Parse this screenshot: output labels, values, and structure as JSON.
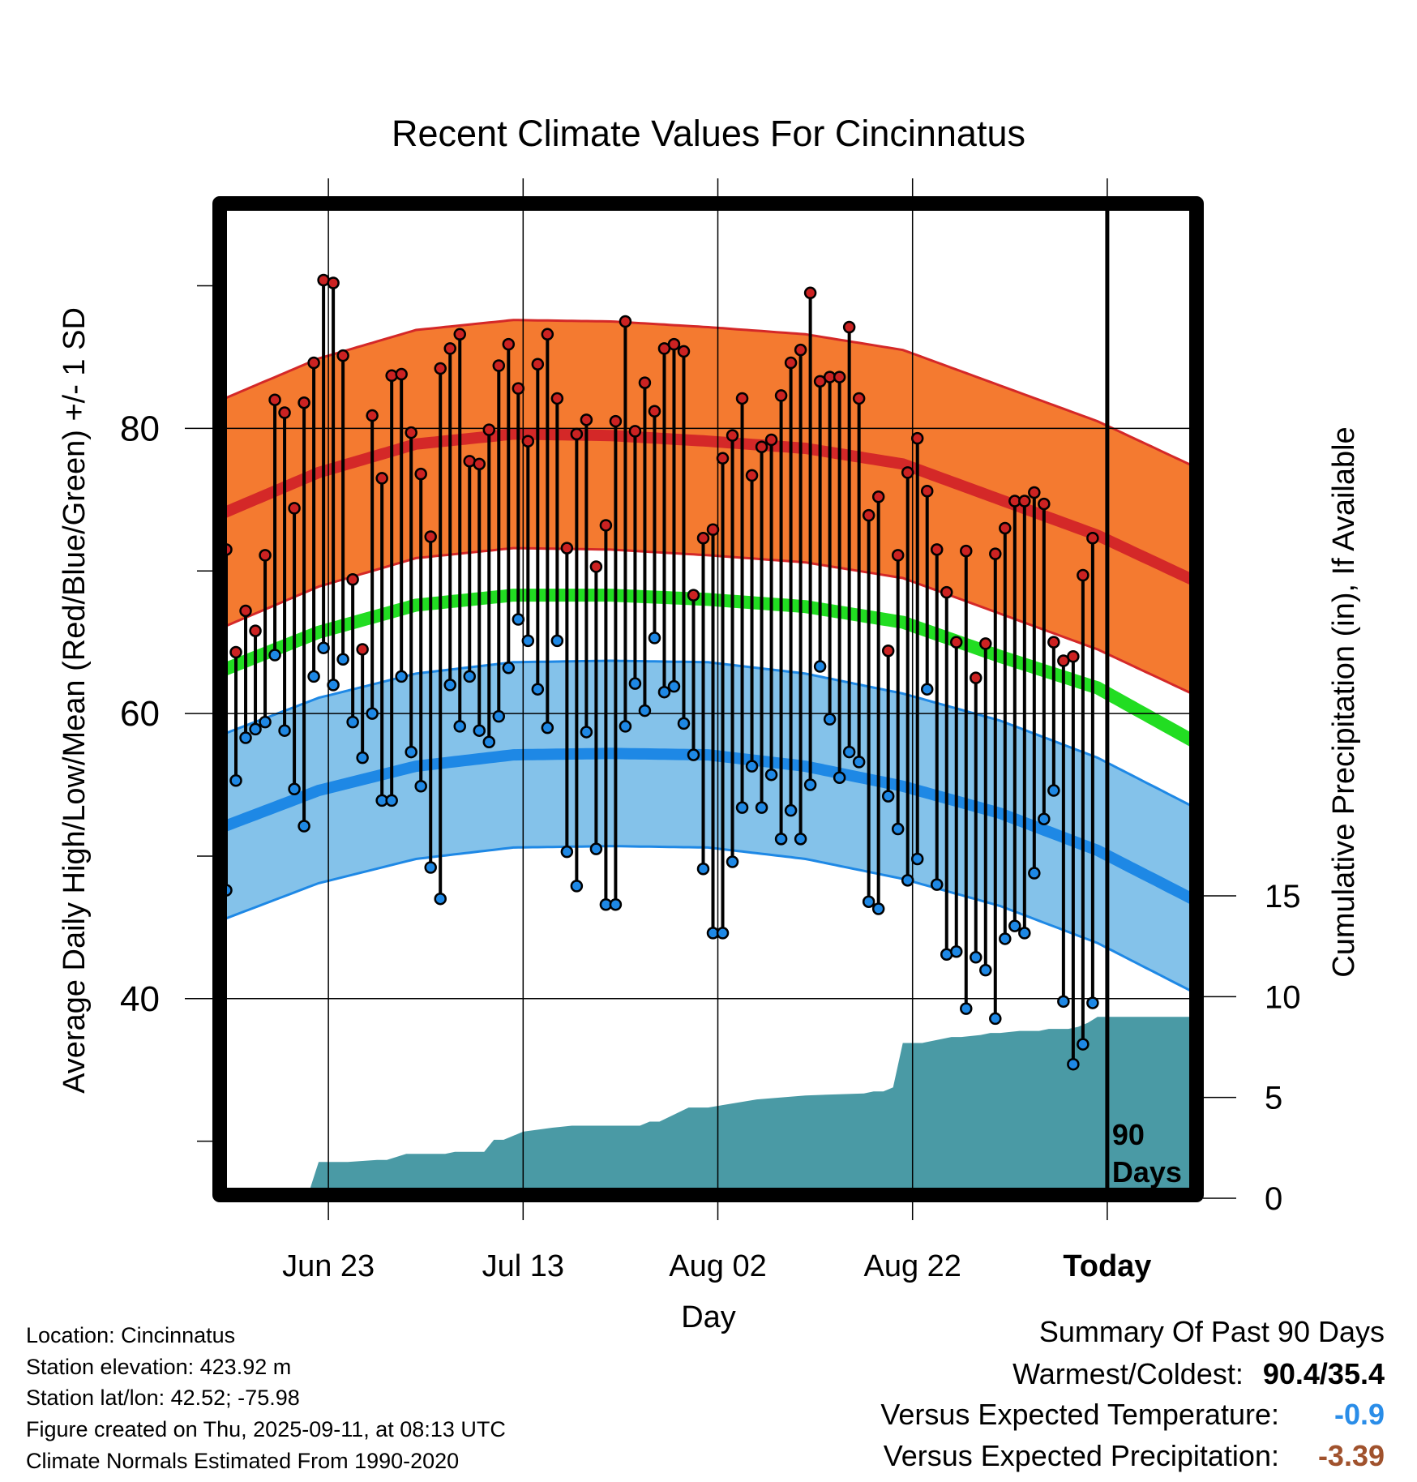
{
  "chart_data": {
    "type": "line",
    "title": "Recent Climate Values For Cincinnatus",
    "xlabel": "Day",
    "ylabel_left": "Average Daily High/Low/Mean (Red/Blue/Green) +/- 1 SD",
    "ylabel_right": "Cumulative Precipitation (in), If Available",
    "x_ticks": [
      "Jun 23",
      "Jul 13",
      "Aug 02",
      "Aug 22",
      "Today"
    ],
    "x_tick_days": [
      11,
      31,
      51,
      71,
      91
    ],
    "y_ticks_left": [
      "40",
      "60",
      "80"
    ],
    "y_tick_values_left": [
      40,
      60,
      80
    ],
    "y_ticks_right": [
      "0",
      "5",
      "10",
      "15"
    ],
    "y_tick_values_right": [
      0,
      5,
      10,
      15
    ],
    "ylim_left": [
      26,
      96
    ],
    "ylim_right": [
      0,
      49.5
    ],
    "xlim": [
      -0.5,
      100.5
    ],
    "grid": true,
    "today_day": 91,
    "today_label_line1": "90",
    "today_label_line2": "Days",
    "normals": {
      "days": [
        0,
        10,
        20,
        30,
        40,
        50,
        60,
        70,
        80,
        90,
        100
      ],
      "high_mean": [
        74,
        76.9,
        78.9,
        79.6,
        79.5,
        79.1,
        78.6,
        77.5,
        75,
        72.5,
        69.3
      ],
      "high_sd": 8,
      "low_mean": [
        52,
        54.6,
        56.3,
        57.1,
        57.2,
        57.1,
        56.3,
        54.9,
        53,
        50.4,
        46.9
      ],
      "low_sd": 6.5,
      "mean": [
        63,
        65.7,
        67.6,
        68.3,
        68.3,
        68,
        67.5,
        66.4,
        64,
        61.8,
        58
      ]
    },
    "series": [
      {
        "name": "High",
        "color": "#cc2222",
        "values": [
          71.5,
          64.3,
          67.2,
          65.8,
          71.1,
          82,
          81.1,
          74.4,
          81.8,
          84.6,
          90.4,
          90.2,
          85.1,
          69.4,
          64.5,
          80.9,
          76.5,
          83.7,
          83.8,
          79.7,
          76.8,
          72.4,
          84.2,
          85.6,
          86.6,
          77.7,
          77.5,
          79.9,
          84.4,
          85.9,
          82.8,
          79.1,
          84.5,
          86.6,
          82.1,
          71.6,
          79.6,
          80.6,
          70.3,
          73.2,
          80.5,
          87.5,
          79.8,
          83.2,
          81.2,
          85.6,
          85.9,
          85.4,
          68.3,
          72.3,
          72.9,
          77.9,
          79.5,
          82.1,
          76.7,
          78.7,
          79.2,
          82.3,
          84.6,
          85.5,
          89.5,
          83.3,
          83.6,
          83.6,
          87.1,
          82.1,
          73.9,
          75.2,
          64.4,
          71.1,
          76.9,
          79.3,
          75.6,
          71.5,
          68.5,
          65,
          71.4,
          62.5,
          64.9,
          71.2,
          73,
          74.9,
          74.9,
          75.5,
          74.7,
          65,
          63.7,
          64,
          69.7,
          72.3
        ]
      },
      {
        "name": "Low",
        "color": "#1e88e5",
        "values": [
          47.6,
          55.3,
          58.3,
          58.9,
          59.4,
          64.1,
          58.8,
          54.7,
          52.1,
          62.6,
          64.6,
          62,
          63.8,
          59.4,
          56.9,
          60,
          53.9,
          53.9,
          62.6,
          57.3,
          54.9,
          49.2,
          47,
          62,
          59.1,
          62.6,
          58.8,
          58,
          59.8,
          63.2,
          66.6,
          65.1,
          61.7,
          59,
          65.1,
          50.3,
          47.9,
          58.7,
          50.5,
          46.6,
          46.6,
          59.1,
          62.1,
          60.2,
          65.3,
          61.5,
          61.9,
          59.3,
          57.1,
          49.1,
          44.6,
          44.6,
          49.6,
          53.4,
          56.3,
          53.4,
          55.7,
          51.2,
          53.2,
          51.2,
          55,
          63.3,
          59.6,
          55.5,
          57.3,
          56.6,
          46.8,
          46.3,
          54.2,
          51.9,
          48.3,
          49.8,
          61.7,
          48,
          43.1,
          43.3,
          39.3,
          42.9,
          42,
          38.6,
          44.2,
          45.1,
          44.6,
          48.8,
          52.6,
          54.6,
          39.8,
          35.4,
          36.8,
          39.7
        ]
      }
    ],
    "precipitation": {
      "days": [
        0,
        5,
        6,
        8,
        9,
        10,
        13,
        16,
        17,
        19,
        23,
        24,
        27,
        28,
        29,
        30,
        31,
        34,
        36,
        38,
        39,
        41,
        42,
        43,
        44,
        45,
        48,
        50,
        55,
        60,
        66,
        67,
        68,
        69,
        70,
        71,
        72,
        73,
        75,
        76,
        78,
        79,
        80,
        82,
        84,
        85,
        86,
        87,
        88,
        89,
        90,
        91,
        100
      ],
      "values": [
        0,
        0,
        0.1,
        0.3,
        0.3,
        1.8,
        1.8,
        1.9,
        1.9,
        2.2,
        2.2,
        2.3,
        2.3,
        2.9,
        2.9,
        3.1,
        3.3,
        3.5,
        3.6,
        3.6,
        3.6,
        3.6,
        3.6,
        3.6,
        3.8,
        3.8,
        4.5,
        4.5,
        4.9,
        5.1,
        5.2,
        5.3,
        5.3,
        5.5,
        7.7,
        7.7,
        7.7,
        7.8,
        8,
        8,
        8.1,
        8.2,
        8.2,
        8.3,
        8.3,
        8.4,
        8.4,
        8.4,
        8.5,
        8.7,
        9,
        9,
        9
      ]
    }
  },
  "footer": {
    "location": "Location: Cincinnatus",
    "elevation": "Station elevation: 423.92 m",
    "latlon": "Station lat/lon: 42.52; -75.98",
    "created": "Figure created on Thu, 2025-09-11, at 08:13 UTC",
    "normals": "Climate Normals Estimated From 1990-2020"
  },
  "summary": {
    "title": "Summary Of Past 90 Days",
    "warmest_coldest_label": "Warmest/Coldest:",
    "warmest_coldest_value": "90.4/35.4",
    "temp_label": "Versus Expected Temperature:",
    "temp_value": "-0.9",
    "temp_color": "#2a8de8",
    "precip_label": "Versus Expected Precipitation:",
    "precip_value": "-3.39",
    "precip_color": "#a0522d"
  },
  "colors": {
    "high_band": "#f47a30",
    "high_line": "#d42828",
    "low_band": "#84c2ea",
    "low_line": "#1e88e5",
    "mean_line": "#22dd22",
    "precip": "#4a9aa5"
  }
}
